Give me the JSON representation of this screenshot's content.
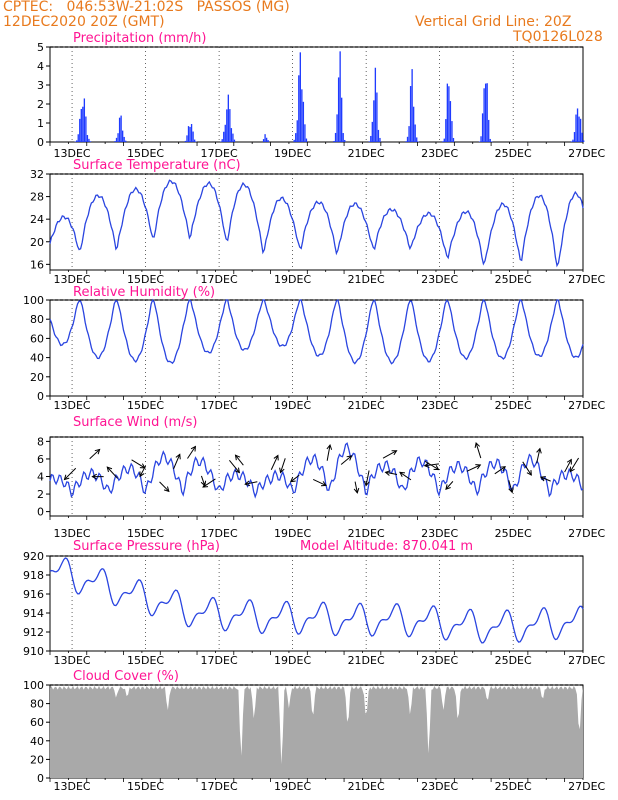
{
  "header": {
    "line1": "CPTEC:   046:53W-21:02S   PASSOS (MG)",
    "line2": "12DEC2020 20Z (GMT)",
    "grid_note": "Vertical Grid Line: 20Z",
    "code": "TQ0126L028"
  },
  "colors": {
    "header": "#e87a1e",
    "title": "#ff1493",
    "precip": "#1f3bff",
    "line": "#2a45e0",
    "cloud": "#a9a9a9",
    "arrow": "#000000"
  },
  "date_labels": [
    "13DEC",
    "15DEC",
    "17DEC",
    "19DEC",
    "21DEC",
    "23DEC",
    "25DEC",
    "27DEC"
  ],
  "chart_data": [
    {
      "id": "precip",
      "type": "bar",
      "title": "Precipitation (mm/h)",
      "ylim": [
        0,
        5
      ],
      "yticks": [
        "0",
        "1",
        "2",
        "3",
        "4",
        "5"
      ],
      "x_days": [
        0,
        14.5
      ],
      "bursts": [
        {
          "day": 0.88,
          "peak": 2.7,
          "width": 0.22
        },
        {
          "day": 1.9,
          "peak": 1.5,
          "width": 0.18
        },
        {
          "day": 3.8,
          "peak": 1.3,
          "width": 0.18
        },
        {
          "day": 4.83,
          "peak": 2.5,
          "width": 0.22
        },
        {
          "day": 5.85,
          "peak": 0.5,
          "width": 0.12
        },
        {
          "day": 6.8,
          "peak": 5.0,
          "width": 0.2
        },
        {
          "day": 7.86,
          "peak": 5.0,
          "width": 0.16
        },
        {
          "day": 8.83,
          "peak": 4.0,
          "width": 0.17
        },
        {
          "day": 9.83,
          "peak": 4.0,
          "width": 0.17
        },
        {
          "day": 10.83,
          "peak": 4.0,
          "width": 0.17
        },
        {
          "day": 11.83,
          "peak": 4.5,
          "width": 0.17
        },
        {
          "day": 14.35,
          "peak": 2.2,
          "width": 0.2
        }
      ]
    },
    {
      "id": "temperature",
      "type": "line",
      "title": "Surface Temperature (nC)",
      "ylim": [
        15,
        32
      ],
      "yticks": [
        "16",
        "20",
        "24",
        "28",
        "32"
      ],
      "min_values": [
        16,
        19,
        19,
        21,
        21,
        20,
        18,
        19,
        18,
        19,
        19,
        17,
        16,
        17,
        15.5
      ],
      "max_values": [
        22.5,
        28,
        28.5,
        31,
        30,
        31,
        28,
        27,
        27,
        26,
        25,
        25,
        26,
        28,
        28.5
      ]
    },
    {
      "id": "humidity",
      "type": "line",
      "title": "Relative Humidity (%)",
      "ylim": [
        0,
        100
      ],
      "yticks": [
        "0",
        "20",
        "40",
        "60",
        "80",
        "100"
      ],
      "min_values": [
        60,
        40,
        40,
        30,
        45,
        45,
        55,
        45,
        35,
        35,
        35,
        40,
        38,
        42,
        40
      ]
    },
    {
      "id": "wind",
      "type": "line",
      "title": "Surface Wind (m/s)",
      "ylim": [
        -0.5,
        8.5
      ],
      "yticks": [
        "0",
        "2",
        "4",
        "6",
        "8"
      ],
      "max_values": [
        4,
        4.5,
        5,
        6.7,
        6.3,
        4.5,
        4,
        6.2,
        8,
        5.5,
        6.2,
        5.5,
        5.8,
        6.5,
        4.5
      ]
    },
    {
      "id": "pressure",
      "type": "line",
      "title": "Surface Pressure (hPa)",
      "annotation": "Model Altitude: 870.041 m",
      "ylim": [
        910,
        920
      ],
      "yticks": [
        "910",
        "912",
        "914",
        "916",
        "918",
        "920"
      ],
      "trend": [
        918.5,
        917.5,
        916.2,
        915.2,
        914,
        913.8,
        913.5,
        913.5,
        913.3,
        913.3,
        913.2,
        912.8,
        912.5,
        912.7,
        913
      ]
    },
    {
      "id": "cloud",
      "type": "area",
      "title": "Cloud Cover (%)",
      "ylim": [
        0,
        100
      ],
      "yticks": [
        "0",
        "20",
        "40",
        "60",
        "80",
        "100"
      ]
    }
  ]
}
